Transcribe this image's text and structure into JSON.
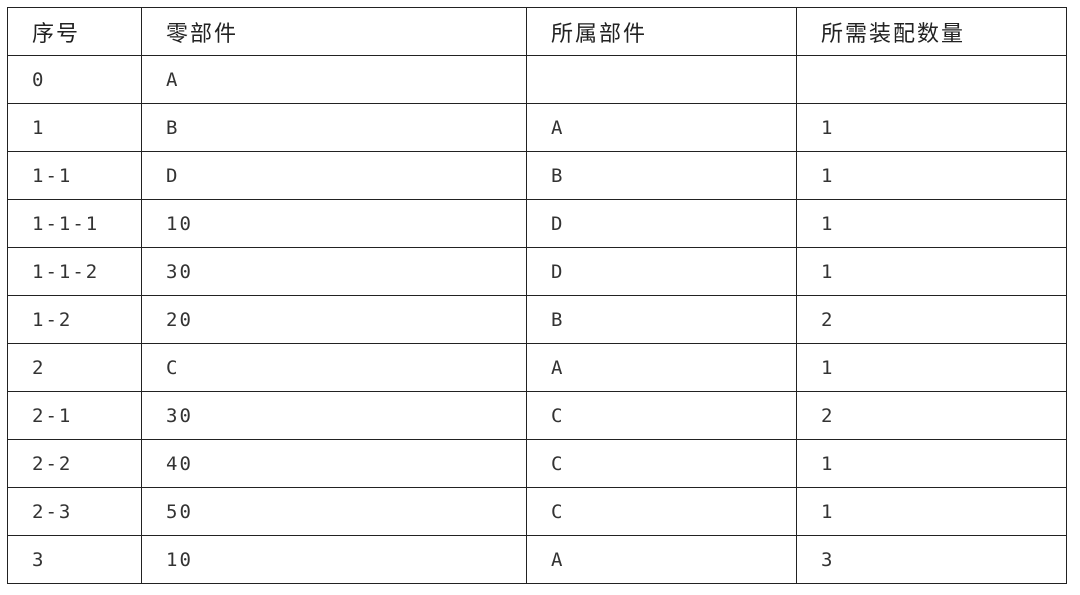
{
  "table": {
    "headers": [
      "序号",
      "零部件",
      "所属部件",
      "所需装配数量"
    ],
    "rows": [
      [
        "0",
        "A",
        "",
        ""
      ],
      [
        "1",
        "B",
        "A",
        "1"
      ],
      [
        "1-1",
        "D",
        "B",
        "1"
      ],
      [
        "1-1-1",
        "10",
        "D",
        "1"
      ],
      [
        "1-1-2",
        "30",
        "D",
        "1"
      ],
      [
        "1-2",
        "20",
        "B",
        "2"
      ],
      [
        "2",
        "C",
        "A",
        "1"
      ],
      [
        "2-1",
        "30",
        "C",
        "2"
      ],
      [
        "2-2",
        "40",
        "C",
        "1"
      ],
      [
        "2-3",
        "50",
        "C",
        "1"
      ],
      [
        "3",
        "10",
        "A",
        "3"
      ]
    ]
  }
}
